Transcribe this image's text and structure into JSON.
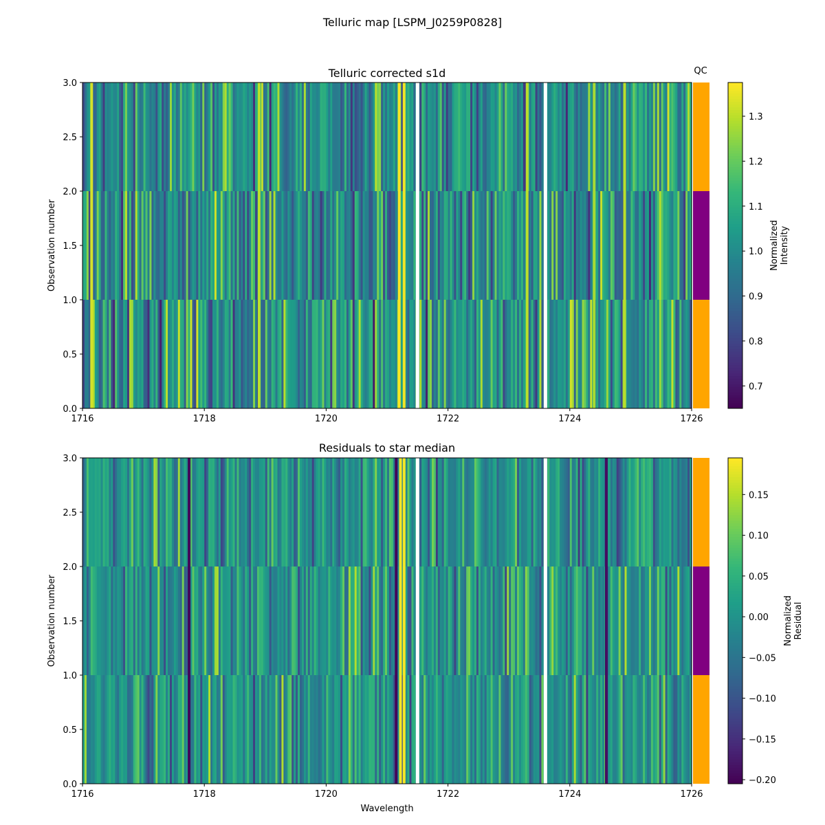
{
  "chart_data": [
    {
      "type": "heatmap",
      "title": "Telluric corrected s1d",
      "xlabel": "",
      "ylabel": "Observation number",
      "xlim": [
        1716,
        1726
      ],
      "ylim": [
        0,
        3
      ],
      "xticks": [
        "1716",
        "1718",
        "1720",
        "1722",
        "1724",
        "1726"
      ],
      "yticks": [
        "0.0",
        "0.5",
        "1.0",
        "1.5",
        "2.0",
        "2.5",
        "3.0"
      ],
      "colorbar": {
        "label_lines": [
          "Normalized",
          "Intensity"
        ],
        "range": [
          0.65,
          1.375
        ],
        "ticks": [
          "0.7",
          "0.8",
          "0.9",
          "1.0",
          "1.1",
          "1.2",
          "1.3"
        ],
        "tick_values": [
          0.7,
          0.8,
          0.9,
          1.0,
          1.1,
          1.2,
          1.3
        ],
        "colormap": "viridis"
      },
      "rows": [
        {
          "observation": 0,
          "y_range": [
            0,
            1
          ],
          "qc": "pass"
        },
        {
          "observation": 1,
          "y_range": [
            1,
            2
          ],
          "qc": "fail"
        },
        {
          "observation": 2,
          "y_range": [
            2,
            3
          ],
          "qc": "pass"
        }
      ],
      "strong_features": [
        {
          "x": 1716.15,
          "value": 1.33
        },
        {
          "x": 1718.9,
          "value": 1.3
        },
        {
          "x": 1721.2,
          "value": 1.37
        },
        {
          "x": 1721.28,
          "value": 1.36
        },
        {
          "x": 1723.3,
          "value": 1.3
        },
        {
          "x": 1724.4,
          "value": 1.28
        },
        {
          "x": 1724.9,
          "value": 1.3
        }
      ],
      "masked_x": [
        1721.5,
        1723.6
      ],
      "seed": 7,
      "base": 1.0,
      "spread": 0.22
    },
    {
      "type": "heatmap",
      "title": "Residuals to star median",
      "xlabel": "Wavelength",
      "ylabel": "Observation number",
      "xlim": [
        1716,
        1726
      ],
      "ylim": [
        0,
        3
      ],
      "xticks": [
        "1716",
        "1718",
        "1720",
        "1722",
        "1724",
        "1726"
      ],
      "yticks": [
        "0.0",
        "0.5",
        "1.0",
        "1.5",
        "2.0",
        "2.5",
        "3.0"
      ],
      "colorbar": {
        "label_lines": [
          "Normalized",
          "Residual"
        ],
        "range": [
          -0.205,
          0.195
        ],
        "ticks": [
          "0.15",
          "0.10",
          "0.05",
          "0.00",
          "−0.05",
          "−0.10",
          "−0.15",
          "−0.20"
        ],
        "tick_values": [
          0.15,
          0.1,
          0.05,
          0.0,
          -0.05,
          -0.1,
          -0.15,
          -0.2
        ],
        "colormap": "viridis"
      },
      "rows": [
        {
          "observation": 0,
          "y_range": [
            0,
            1
          ],
          "qc": "pass"
        },
        {
          "observation": 1,
          "y_range": [
            1,
            2
          ],
          "qc": "fail"
        },
        {
          "observation": 2,
          "y_range": [
            2,
            3
          ],
          "qc": "pass"
        }
      ],
      "strong_features": [
        {
          "x": 1721.22,
          "value": 0.19
        },
        {
          "x": 1721.28,
          "value": 0.19
        },
        {
          "x": 1721.15,
          "value": -0.2
        },
        {
          "x": 1717.75,
          "value": -0.2
        },
        {
          "x": 1724.6,
          "value": -0.19
        }
      ],
      "masked_x": [
        1721.5,
        1723.6
      ],
      "seed": 13,
      "base": 0.0,
      "spread": 0.1
    }
  ],
  "figure": {
    "title": "Telluric map [LSPM_J0259P0828]",
    "qc_label": "QC",
    "qc_colors": {
      "pass": "#ffa500",
      "fail": "#800080"
    }
  }
}
